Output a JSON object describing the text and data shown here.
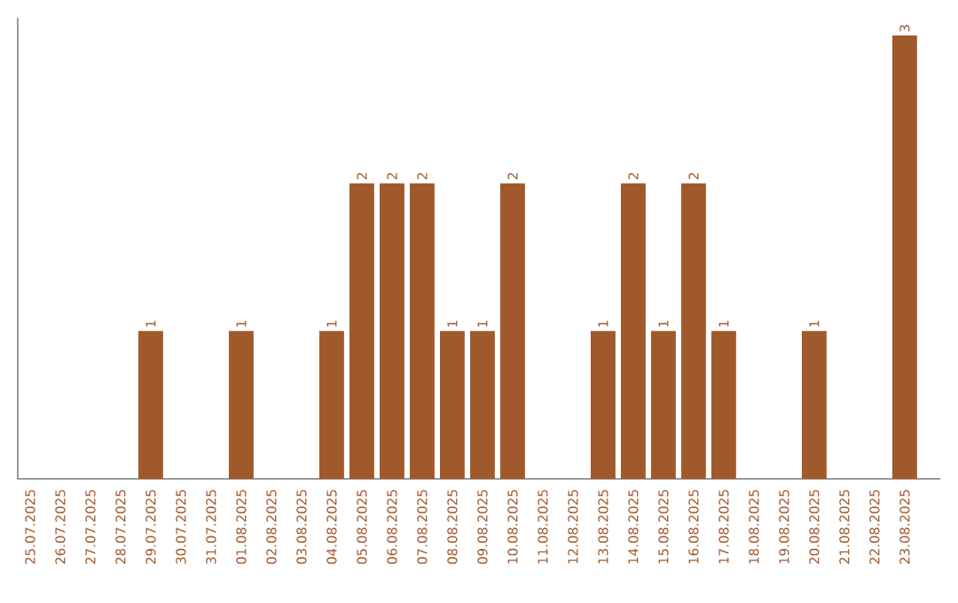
{
  "chart_data": {
    "type": "bar",
    "categories": [
      "25.07.2025",
      "26.07.2025",
      "27.07.2025",
      "28.07.2025",
      "29.07.2025",
      "30.07.2025",
      "31.07.2025",
      "01.08.2025",
      "02.08.2025",
      "03.08.2025",
      "04.08.2025",
      "05.08.2025",
      "06.08.2025",
      "07.08.2025",
      "08.08.2025",
      "09.08.2025",
      "10.08.2025",
      "11.08.2025",
      "12.08.2025",
      "13.08.2025",
      "14.08.2025",
      "15.08.2025",
      "16.08.2025",
      "17.08.2025",
      "18.08.2025",
      "19.08.2025",
      "20.08.2025",
      "21.08.2025",
      "22.08.2025",
      "23.08.2025"
    ],
    "values": [
      0,
      0,
      0,
      0,
      1,
      0,
      0,
      1,
      0,
      0,
      1,
      2,
      2,
      2,
      1,
      1,
      2,
      0,
      0,
      1,
      2,
      1,
      2,
      1,
      0,
      0,
      1,
      0,
      0,
      3
    ],
    "value_labels": [
      null,
      null,
      null,
      null,
      "1",
      null,
      null,
      "1",
      null,
      null,
      "1",
      "2",
      "2",
      "2",
      "1",
      "1",
      "2",
      null,
      null,
      "1",
      "2",
      "1",
      "2",
      "1",
      null,
      null,
      "1",
      null,
      null,
      "3"
    ],
    "color": "#a0592b",
    "ylim": [
      0,
      3.12
    ],
    "grid": false
  }
}
